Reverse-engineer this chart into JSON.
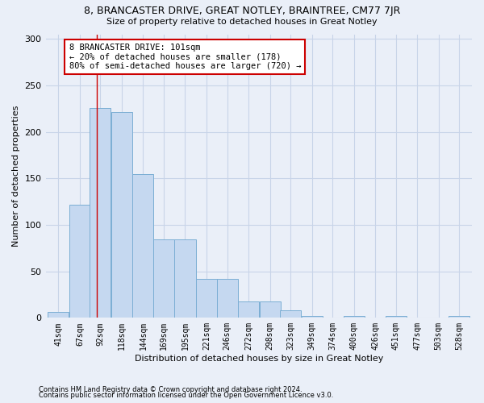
{
  "title1": "8, BRANCASTER DRIVE, GREAT NOTLEY, BRAINTREE, CM77 7JR",
  "title2": "Size of property relative to detached houses in Great Notley",
  "xlabel": "Distribution of detached houses by size in Great Notley",
  "ylabel": "Number of detached properties",
  "footnote1": "Contains HM Land Registry data © Crown copyright and database right 2024.",
  "footnote2": "Contains public sector information licensed under the Open Government Licence v3.0.",
  "bar_color": "#c5d8f0",
  "bar_edge_color": "#7baed4",
  "grid_color": "#c8d4e8",
  "background_color": "#eaeff8",
  "annotation_box_color": "#ffffff",
  "annotation_border_color": "#cc0000",
  "vline_color": "#cc0000",
  "bins": [
    41,
    67,
    92,
    118,
    144,
    169,
    195,
    221,
    246,
    272,
    298,
    323,
    349,
    374,
    400,
    426,
    451,
    477,
    503,
    528,
    554
  ],
  "counts": [
    6,
    122,
    226,
    221,
    155,
    84,
    84,
    42,
    42,
    18,
    18,
    8,
    2,
    0,
    2,
    0,
    2,
    0,
    0,
    2
  ],
  "vline_x": 101,
  "annotation_line1": "8 BRANCASTER DRIVE: 101sqm",
  "annotation_line2": "← 20% of detached houses are smaller (178)",
  "annotation_line3": "80% of semi-detached houses are larger (720) →",
  "ylim": [
    0,
    305
  ],
  "yticks": [
    0,
    50,
    100,
    150,
    200,
    250,
    300
  ],
  "title1_fontsize": 9,
  "title2_fontsize": 8,
  "ylabel_fontsize": 8,
  "xlabel_fontsize": 8,
  "tick_fontsize": 7,
  "footnote_fontsize": 6
}
